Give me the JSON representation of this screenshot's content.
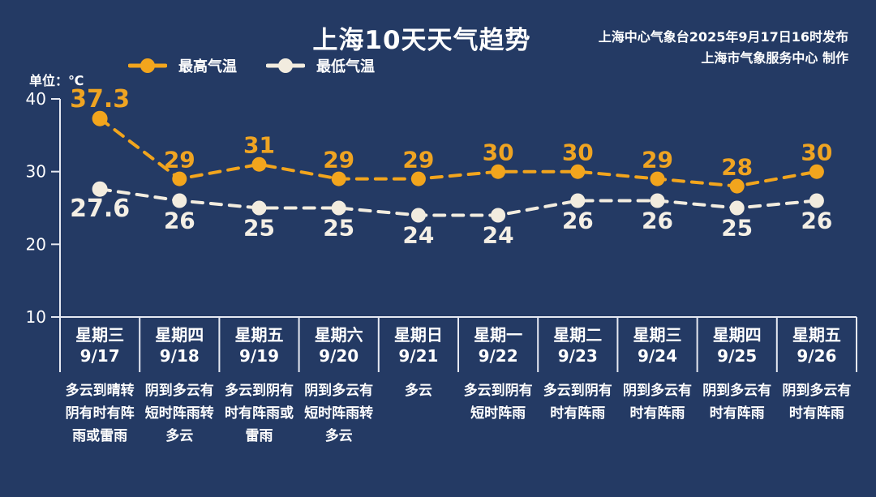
{
  "header": {
    "title": "上海10天天气趋势",
    "issued_by": "上海中心气象台2025年9月17日16时发布",
    "produced_by": "上海市气象服务中心 制作"
  },
  "legend": {
    "max_label": "最高气温",
    "min_label": "最低气温"
  },
  "axis": {
    "unit_label": "单位：℃"
  },
  "colors": {
    "background": "#243a64",
    "max_series": "#f2a51d",
    "min_series": "#f2ecdf",
    "max_label_text": "#efa422",
    "min_label_text": "#f4efe5",
    "axis_line": "#e6e9f2",
    "text": "#ffffff"
  },
  "chart_data": {
    "type": "line",
    "title": "上海10天天气趋势",
    "xlabel": "",
    "ylabel": "℃",
    "ylim": [
      10,
      40
    ],
    "yticks": [
      40,
      30,
      20,
      10
    ],
    "grid": false,
    "legend_position": "top",
    "line_style": "dashed-with-round-markers",
    "categories": [
      {
        "weekday": "星期三",
        "date": "9/17",
        "weather": "多云到晴转阴有时有阵雨或雷雨"
      },
      {
        "weekday": "星期四",
        "date": "9/18",
        "weather": "阴到多云有短时阵雨转多云"
      },
      {
        "weekday": "星期五",
        "date": "9/19",
        "weather": "多云到阴有时有阵雨或雷雨"
      },
      {
        "weekday": "星期六",
        "date": "9/20",
        "weather": "阴到多云有短时阵雨转多云"
      },
      {
        "weekday": "星期日",
        "date": "9/21",
        "weather": "多云"
      },
      {
        "weekday": "星期一",
        "date": "9/22",
        "weather": "多云到阴有短时阵雨"
      },
      {
        "weekday": "星期二",
        "date": "9/23",
        "weather": "多云到阴有时有阵雨"
      },
      {
        "weekday": "星期三",
        "date": "9/24",
        "weather": "阴到多云有时有阵雨"
      },
      {
        "weekday": "星期四",
        "date": "9/25",
        "weather": "阴到多云有时有阵雨"
      },
      {
        "weekday": "星期五",
        "date": "9/26",
        "weather": "阴到多云有时有阵雨"
      }
    ],
    "series": [
      {
        "name": "最高气温",
        "color": "#f2a51d",
        "values": [
          37.3,
          29,
          31,
          29,
          29,
          30,
          30,
          29,
          28,
          30
        ]
      },
      {
        "name": "最低气温",
        "color": "#f2ecdf",
        "values": [
          27.6,
          26,
          25,
          25,
          24,
          24,
          26,
          26,
          25,
          26
        ]
      }
    ]
  }
}
